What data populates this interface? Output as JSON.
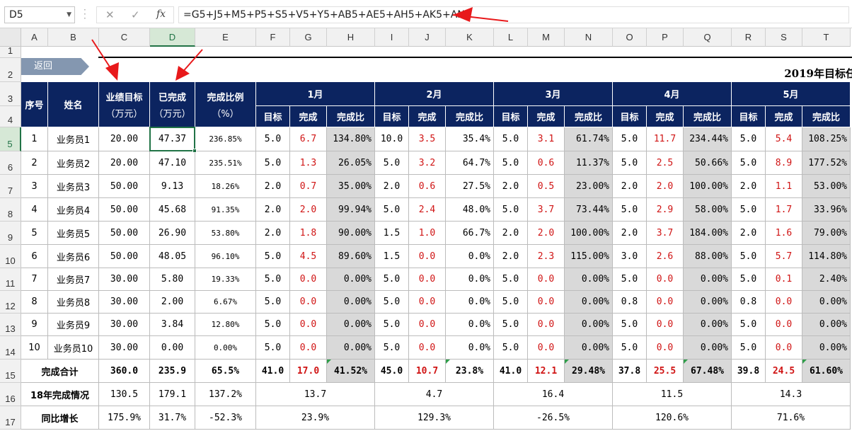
{
  "formula_bar": {
    "name_box": "D5",
    "cancel_icon": "✕",
    "enter_icon": "✓",
    "fx_label": "fx",
    "formula": "=G5+J5+M5+P5+S5+V5+Y5+AB5+AE5+AH5+AK5+AN5"
  },
  "column_headers": [
    "A",
    "B",
    "C",
    "D",
    "E",
    "F",
    "G",
    "H",
    "I",
    "J",
    "K",
    "L",
    "M",
    "N",
    "O",
    "P",
    "Q",
    "R",
    "S",
    "T"
  ],
  "row_headers": [
    "1",
    "2",
    "3",
    "4",
    "5",
    "6",
    "7",
    "8",
    "9",
    "10",
    "11",
    "12",
    "13",
    "14",
    "15",
    "16",
    "17"
  ],
  "selected_cell": "D5",
  "back_button": "返回",
  "sheet_title": "2019年目标任",
  "headers": {
    "index": "序号",
    "name": "姓名",
    "target": [
      "业绩目标",
      "（万元）"
    ],
    "completed": [
      "已完成",
      "（万元）"
    ],
    "ratio": [
      "完成比例",
      "（%）"
    ],
    "months": [
      "1月",
      "2月",
      "3月",
      "4月",
      "5月"
    ],
    "sub": [
      "目标",
      "完成",
      "完成比"
    ]
  },
  "rows": [
    {
      "idx": "1",
      "name": "业务员1",
      "target": "20.00",
      "done": "47.37",
      "ratio": "236.85%",
      "months": [
        [
          "5.0",
          "6.7",
          "134.80%"
        ],
        [
          "10.0",
          "3.5",
          "35.4%"
        ],
        [
          "5.0",
          "3.1",
          "61.74%"
        ],
        [
          "5.0",
          "11.7",
          "234.44%"
        ],
        [
          "5.0",
          "5.4",
          "108.25%"
        ]
      ]
    },
    {
      "idx": "2",
      "name": "业务员2",
      "target": "20.00",
      "done": "47.10",
      "ratio": "235.51%",
      "months": [
        [
          "5.0",
          "1.3",
          "26.05%"
        ],
        [
          "5.0",
          "3.2",
          "64.7%"
        ],
        [
          "5.0",
          "0.6",
          "11.37%"
        ],
        [
          "5.0",
          "2.5",
          "50.66%"
        ],
        [
          "5.0",
          "8.9",
          "177.52%"
        ]
      ]
    },
    {
      "idx": "3",
      "name": "业务员3",
      "target": "50.00",
      "done": "9.13",
      "ratio": "18.26%",
      "months": [
        [
          "2.0",
          "0.7",
          "35.00%"
        ],
        [
          "2.0",
          "0.6",
          "27.5%"
        ],
        [
          "2.0",
          "0.5",
          "23.00%"
        ],
        [
          "2.0",
          "2.0",
          "100.00%"
        ],
        [
          "2.0",
          "1.1",
          "53.00%"
        ]
      ]
    },
    {
      "idx": "4",
      "name": "业务员4",
      "target": "50.00",
      "done": "45.68",
      "ratio": "91.35%",
      "months": [
        [
          "2.0",
          "2.0",
          "99.94%"
        ],
        [
          "5.0",
          "2.4",
          "48.0%"
        ],
        [
          "5.0",
          "3.7",
          "73.44%"
        ],
        [
          "5.0",
          "2.9",
          "58.00%"
        ],
        [
          "5.0",
          "1.7",
          "33.96%"
        ]
      ]
    },
    {
      "idx": "5",
      "name": "业务员5",
      "target": "50.00",
      "done": "26.90",
      "ratio": "53.80%",
      "months": [
        [
          "2.0",
          "1.8",
          "90.00%"
        ],
        [
          "1.5",
          "1.0",
          "66.7%"
        ],
        [
          "2.0",
          "2.0",
          "100.00%"
        ],
        [
          "2.0",
          "3.7",
          "184.00%"
        ],
        [
          "2.0",
          "1.6",
          "79.00%"
        ]
      ]
    },
    {
      "idx": "6",
      "name": "业务员6",
      "target": "50.00",
      "done": "48.05",
      "ratio": "96.10%",
      "months": [
        [
          "5.0",
          "4.5",
          "89.60%"
        ],
        [
          "1.5",
          "0.0",
          "0.0%"
        ],
        [
          "2.0",
          "2.3",
          "115.00%"
        ],
        [
          "3.0",
          "2.6",
          "88.00%"
        ],
        [
          "5.0",
          "5.7",
          "114.80%"
        ]
      ]
    },
    {
      "idx": "7",
      "name": "业务员7",
      "target": "30.00",
      "done": "5.80",
      "ratio": "19.33%",
      "months": [
        [
          "5.0",
          "0.0",
          "0.00%"
        ],
        [
          "5.0",
          "0.0",
          "0.0%"
        ],
        [
          "5.0",
          "0.0",
          "0.00%"
        ],
        [
          "5.0",
          "0.0",
          "0.00%"
        ],
        [
          "5.0",
          "0.1",
          "2.40%"
        ]
      ]
    },
    {
      "idx": "8",
      "name": "业务员8",
      "target": "30.00",
      "done": "2.00",
      "ratio": "6.67%",
      "months": [
        [
          "5.0",
          "0.0",
          "0.00%"
        ],
        [
          "5.0",
          "0.0",
          "0.0%"
        ],
        [
          "5.0",
          "0.0",
          "0.00%"
        ],
        [
          "0.8",
          "0.0",
          "0.00%"
        ],
        [
          "0.8",
          "0.0",
          "0.00%"
        ]
      ]
    },
    {
      "idx": "9",
      "name": "业务员9",
      "target": "30.00",
      "done": "3.84",
      "ratio": "12.80%",
      "months": [
        [
          "5.0",
          "0.0",
          "0.00%"
        ],
        [
          "5.0",
          "0.0",
          "0.0%"
        ],
        [
          "5.0",
          "0.0",
          "0.00%"
        ],
        [
          "5.0",
          "0.0",
          "0.00%"
        ],
        [
          "5.0",
          "0.0",
          "0.00%"
        ]
      ]
    },
    {
      "idx": "10",
      "name": "业务员10",
      "target": "30.00",
      "done": "0.00",
      "ratio": "0.00%",
      "months": [
        [
          "5.0",
          "0.0",
          "0.00%"
        ],
        [
          "5.0",
          "0.0",
          "0.0%"
        ],
        [
          "5.0",
          "0.0",
          "0.00%"
        ],
        [
          "5.0",
          "0.0",
          "0.00%"
        ],
        [
          "5.0",
          "0.0",
          "0.00%"
        ]
      ]
    }
  ],
  "total": {
    "label": "完成合计",
    "target": "360.0",
    "done": "235.9",
    "ratio": "65.5%",
    "months": [
      [
        "41.0",
        "17.0",
        "41.52%"
      ],
      [
        "45.0",
        "10.7",
        "23.8%"
      ],
      [
        "41.0",
        "12.1",
        "29.48%"
      ],
      [
        "37.8",
        "25.5",
        "67.48%"
      ],
      [
        "39.8",
        "24.5",
        "61.60%"
      ]
    ]
  },
  "last_year": {
    "label": "18年完成情况",
    "target": "130.5",
    "done": "179.1",
    "ratio": "137.2%",
    "months": [
      "13.7",
      "4.7",
      "16.4",
      "11.5",
      "14.3"
    ]
  },
  "yoy": {
    "label": "同比增长",
    "target": "175.9%",
    "done": "31.7%",
    "ratio": "-52.3%",
    "months": [
      "23.9%",
      "129.3%",
      "-26.5%",
      "120.6%",
      "71.6%"
    ]
  },
  "colors": {
    "header_bg": "#0c2460",
    "accent": "#217346",
    "red_value": "#d01414",
    "ratio_fill": "#d9d9d9",
    "annotation_arrow": "#e8191b"
  }
}
